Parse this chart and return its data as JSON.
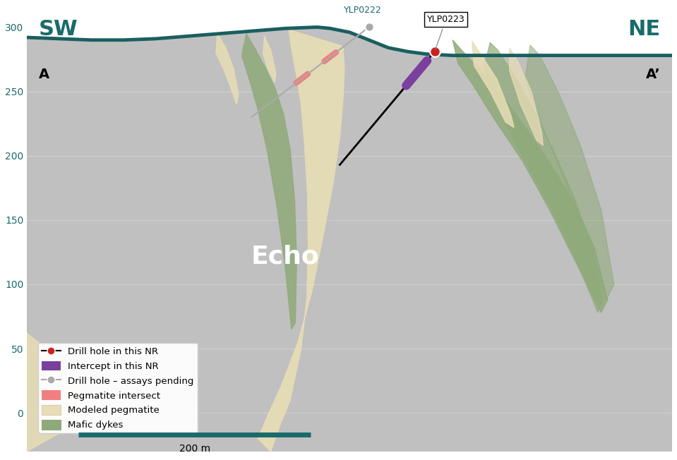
{
  "bg_color": "#c0c0c0",
  "teal_color": "#1a6b6b",
  "pegmatite_color": "#e8ddb5",
  "mafic_color": "#8faa7a",
  "intercept_color": "#7b3f9e",
  "drillhole_color": "#cc2222",
  "pending_color": "#aaaaaa",
  "peg_intersect_color": "#f08080",
  "surface_color": "#1a5f5f",
  "xlim": [
    -100,
    900
  ],
  "ylim": [
    -30,
    315
  ],
  "yticks": [
    0,
    50,
    100,
    150,
    200,
    250,
    300
  ],
  "title_sw": "SW",
  "title_sw2": "A",
  "title_ne": "NE",
  "title_ne2": "A’",
  "echo_label": "Echo",
  "scale_label": "200 m",
  "legend_items": [
    {
      "label": "Drill hole in this NR",
      "color": "#cc2222",
      "type": "dot_line"
    },
    {
      "label": "Intercept in this NR",
      "color": "#7b3f9e",
      "type": "rect"
    },
    {
      "label": "Drill hole – assays pending",
      "color": "#aaaaaa",
      "type": "dot_line"
    },
    {
      "label": "Pegmatite intersect",
      "color": "#f08080",
      "type": "rect"
    },
    {
      "label": "Modeled pegmatite",
      "color": "#e8ddb5",
      "type": "rect"
    },
    {
      "label": "Mafic dykes",
      "color": "#8faa7a",
      "type": "rect"
    }
  ]
}
